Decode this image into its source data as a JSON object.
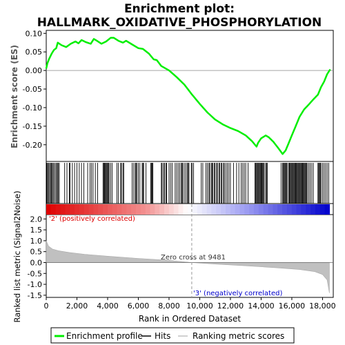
{
  "chart_data": {
    "type": "line",
    "title_line1": "Enrichment plot:",
    "title_line2": "HALLMARK_OXIDATIVE_PHOSPHORYLATION",
    "xlabel": "Rank in Ordered Dataset",
    "ylabel_top": "Enrichment score (ES)",
    "ylabel_bottom": "Ranked list metric (Signal2Noise)",
    "x_range": [
      0,
      18700
    ],
    "x_ticks": [
      "0",
      "2,000",
      "4,000",
      "6,000",
      "8,000",
      "10,000",
      "12,000",
      "14,000",
      "16,000",
      "18,000"
    ],
    "x_tick_values": [
      0,
      2000,
      4000,
      6000,
      8000,
      10000,
      12000,
      14000,
      16000,
      18000
    ],
    "es_ylim": [
      -0.245,
      0.108
    ],
    "es_ticks": [
      "0.10",
      "0.05",
      "0.00",
      "-0.05",
      "-0.10",
      "-0.15",
      "-0.20"
    ],
    "es_tick_values": [
      0.1,
      0.05,
      0.0,
      -0.05,
      -0.1,
      -0.15,
      -0.2
    ],
    "metric_ylim": [
      -1.6,
      2.2
    ],
    "metric_ticks": [
      "2.0",
      "1.5",
      "1.0",
      "0.5",
      "0.0",
      "-0.5",
      "-1.0",
      "-1.5"
    ],
    "metric_tick_values": [
      2.0,
      1.5,
      1.0,
      0.5,
      0.0,
      -0.5,
      -1.0,
      -1.5
    ],
    "series": [
      {
        "name": "Enrichment profile",
        "color": "#00ee00",
        "points": [
          [
            0,
            0.005
          ],
          [
            80,
            0.02
          ],
          [
            200,
            0.032
          ],
          [
            350,
            0.045
          ],
          [
            500,
            0.055
          ],
          [
            650,
            0.06
          ],
          [
            750,
            0.075
          ],
          [
            1000,
            0.068
          ],
          [
            1300,
            0.063
          ],
          [
            1600,
            0.072
          ],
          [
            1900,
            0.078
          ],
          [
            2100,
            0.073
          ],
          [
            2300,
            0.082
          ],
          [
            2600,
            0.076
          ],
          [
            2900,
            0.072
          ],
          [
            3100,
            0.085
          ],
          [
            3300,
            0.08
          ],
          [
            3600,
            0.072
          ],
          [
            3900,
            0.078
          ],
          [
            4200,
            0.088
          ],
          [
            4400,
            0.088
          ],
          [
            4700,
            0.08
          ],
          [
            5000,
            0.075
          ],
          [
            5200,
            0.08
          ],
          [
            5600,
            0.07
          ],
          [
            6000,
            0.06
          ],
          [
            6300,
            0.058
          ],
          [
            6700,
            0.045
          ],
          [
            7000,
            0.03
          ],
          [
            7200,
            0.028
          ],
          [
            7500,
            0.012
          ],
          [
            8000,
            0.0
          ],
          [
            8500,
            -0.018
          ],
          [
            9000,
            -0.038
          ],
          [
            9500,
            -0.065
          ],
          [
            10000,
            -0.09
          ],
          [
            10500,
            -0.113
          ],
          [
            11000,
            -0.132
          ],
          [
            11500,
            -0.145
          ],
          [
            12000,
            -0.155
          ],
          [
            12500,
            -0.163
          ],
          [
            13000,
            -0.175
          ],
          [
            13400,
            -0.19
          ],
          [
            13700,
            -0.205
          ],
          [
            13800,
            -0.195
          ],
          [
            14000,
            -0.183
          ],
          [
            14300,
            -0.175
          ],
          [
            14500,
            -0.18
          ],
          [
            14800,
            -0.192
          ],
          [
            15100,
            -0.208
          ],
          [
            15400,
            -0.225
          ],
          [
            15600,
            -0.215
          ],
          [
            15800,
            -0.195
          ],
          [
            16000,
            -0.175
          ],
          [
            16200,
            -0.155
          ],
          [
            16500,
            -0.125
          ],
          [
            16800,
            -0.105
          ],
          [
            17100,
            -0.092
          ],
          [
            17400,
            -0.078
          ],
          [
            17700,
            -0.065
          ],
          [
            17900,
            -0.045
          ],
          [
            18100,
            -0.03
          ],
          [
            18300,
            -0.01
          ],
          [
            18500,
            0.003
          ]
        ]
      },
      {
        "name": "Hits",
        "color": "#000000"
      },
      {
        "name": "Ranking metric scores",
        "color": "#c0c0c0",
        "points": [
          [
            0,
            1.0
          ],
          [
            150,
            0.75
          ],
          [
            400,
            0.62
          ],
          [
            800,
            0.54
          ],
          [
            1500,
            0.46
          ],
          [
            2500,
            0.38
          ],
          [
            4000,
            0.29
          ],
          [
            6000,
            0.19
          ],
          [
            8000,
            0.1
          ],
          [
            9481,
            0.0
          ],
          [
            11000,
            -0.07
          ],
          [
            13000,
            -0.15
          ],
          [
            15000,
            -0.24
          ],
          [
            16500,
            -0.32
          ],
          [
            17500,
            -0.42
          ],
          [
            18000,
            -0.55
          ],
          [
            18300,
            -0.8
          ],
          [
            18450,
            -1.4
          ]
        ]
      }
    ],
    "hits": [
      40,
      90,
      150,
      220,
      280,
      330,
      390,
      450,
      520,
      600,
      680,
      720,
      790,
      850,
      1200,
      1350,
      1500,
      1550,
      1700,
      1850,
      2000,
      2150,
      2300,
      2450,
      2700,
      2850,
      2950,
      3050,
      3200,
      3350,
      3700,
      3750,
      3800,
      3850,
      3900,
      3950,
      4000,
      4050,
      4100,
      4200,
      4300,
      4600,
      4700,
      4850,
      4900,
      5000,
      5050,
      5600,
      5700,
      5800,
      5850,
      5900,
      6000,
      6100,
      6250,
      6300,
      6350,
      6500,
      6800,
      6850,
      6900,
      6950,
      7500,
      7550,
      7650,
      7700,
      7800,
      7850,
      8000,
      8100,
      8200,
      8400,
      8500,
      8600,
      8700,
      8800,
      8850,
      8900,
      9000,
      9100,
      9200,
      9250,
      9300,
      9450,
      9500,
      9600,
      10100,
      10200,
      10400,
      10500,
      10600,
      10650,
      10750,
      10800,
      10850,
      10950,
      11000,
      11100,
      11150,
      11250,
      11300,
      11400,
      11450,
      11550,
      11600,
      11700,
      11800,
      11900,
      12000,
      12200,
      12400,
      12550,
      12700,
      12800,
      12900,
      13000,
      13150,
      13600,
      13650,
      13700,
      13750,
      13800,
      13850,
      13900,
      13950,
      14000,
      14050,
      14100,
      14150,
      14200,
      14300,
      14350,
      14400,
      15300,
      15400,
      15450,
      15500,
      15550,
      15600,
      15650,
      15700,
      15800,
      15850,
      15900,
      15950,
      16000,
      16050,
      16100,
      16150,
      16200,
      16250,
      16300,
      16350,
      16400,
      16450,
      16500,
      16550,
      16600,
      16650,
      16700,
      16750,
      16800,
      16850,
      16900,
      16950,
      17000,
      17100,
      17200,
      17300,
      17400,
      17700,
      17750,
      17800,
      17850,
      17900,
      18000,
      18100,
      18200,
      18300,
      18400
    ],
    "heatmap_stops": [
      [
        0,
        "#dd0000"
      ],
      [
        0.35,
        "#f29090"
      ],
      [
        0.5,
        "#ffffff"
      ],
      [
        0.7,
        "#a0a0f2"
      ],
      [
        1,
        "#0000cc"
      ]
    ],
    "zero_cross_rank": 9481,
    "annotations": {
      "pos": "'2' (positively correlated)",
      "neg": "'3' (negatively correlated)",
      "zero": "Zero cross at 9481"
    },
    "legend_position": "bottom",
    "grid": false
  }
}
